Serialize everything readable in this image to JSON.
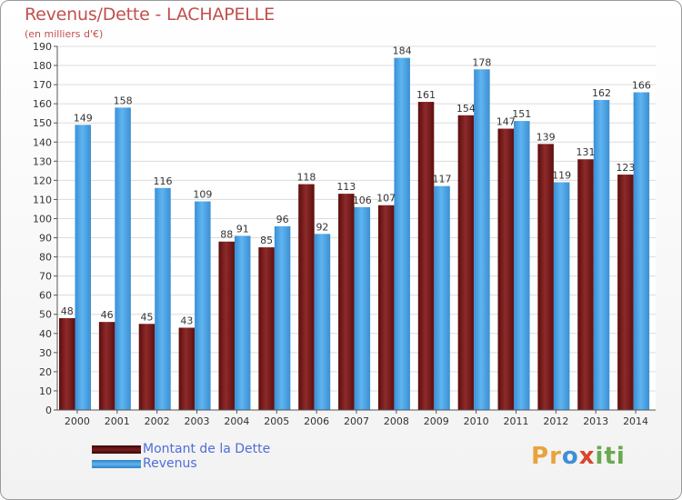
{
  "title": "Revenus/Dette - LACHAPELLE",
  "subtitle": "(en milliers d'€)",
  "brand": {
    "letters": [
      "P",
      "r",
      "o",
      "x",
      "i",
      "t",
      "i"
    ],
    "colors": [
      "#e8a33c",
      "#e8a33c",
      "#3d8fd6",
      "#d9452b",
      "#6aa84f",
      "#6aa84f",
      "#6aa84f"
    ]
  },
  "chart_data": {
    "type": "bar",
    "categories": [
      "2000",
      "2001",
      "2002",
      "2003",
      "2004",
      "2005",
      "2006",
      "2007",
      "2008",
      "2009",
      "2010",
      "2011",
      "2012",
      "2013",
      "2014"
    ],
    "series": [
      {
        "name": "Montant de la Dette",
        "color": "#7a1c1c",
        "values": [
          48,
          46,
          45,
          43,
          88,
          85,
          118,
          113,
          107,
          161,
          154,
          147,
          139,
          131,
          123
        ]
      },
      {
        "name": "Revenus",
        "color": "#4aa3e8",
        "values": [
          149,
          158,
          116,
          109,
          91,
          96,
          92,
          106,
          184,
          117,
          178,
          151,
          119,
          162,
          166
        ]
      }
    ],
    "yticks": [
      0,
      10,
      20,
      30,
      40,
      50,
      60,
      70,
      80,
      90,
      100,
      110,
      120,
      130,
      140,
      150,
      160,
      170,
      180,
      190
    ],
    "ylim": [
      0,
      190
    ],
    "grid": true,
    "legend_position": "bottom-left"
  }
}
